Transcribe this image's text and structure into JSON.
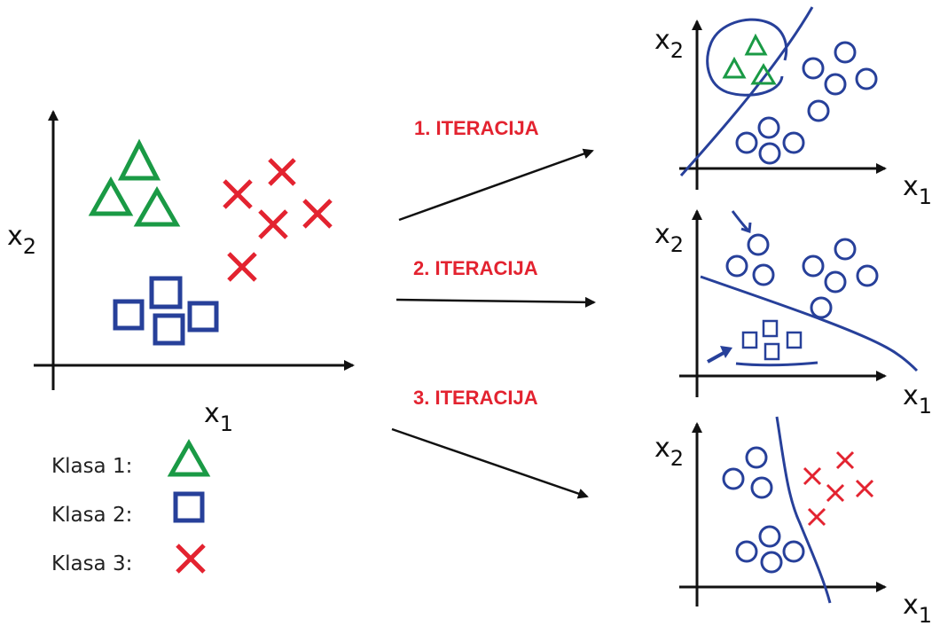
{
  "colors": {
    "class1": "#1a9a45",
    "class2": "#27409a",
    "class3": "#e32330",
    "iteration": "#e32330",
    "axis": "#111111"
  },
  "axes": {
    "x_main": "x",
    "x_sub": "1",
    "y_main": "x",
    "y_sub": "2"
  },
  "iterations": [
    {
      "label": "1. ITERACIJA"
    },
    {
      "label": "2. ITERACIJA"
    },
    {
      "label": "3. ITERACIJA"
    }
  ],
  "legend": [
    {
      "label": "Klasa 1:",
      "icon": "triangle-icon"
    },
    {
      "label": "Klasa 2:",
      "icon": "square-icon"
    },
    {
      "label": "Klasa 3:",
      "icon": "cross-icon"
    }
  ]
}
